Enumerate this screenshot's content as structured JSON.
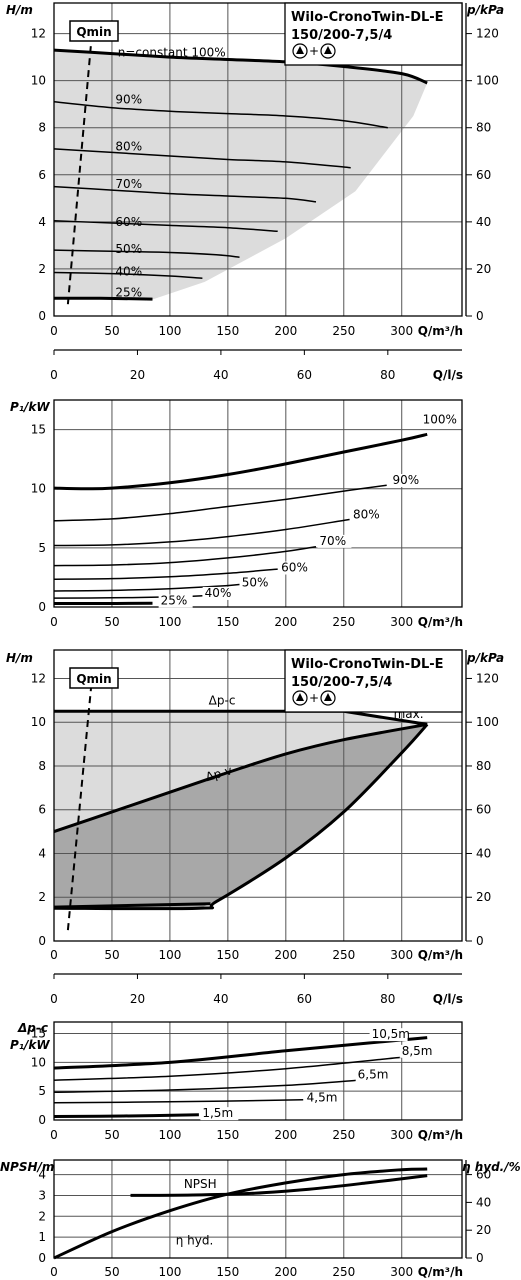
{
  "pump": {
    "title_line1": "Wilo-CronoTwin-DL-E",
    "title_line2": "150/200-7,5/4",
    "mode_plus": "+"
  },
  "colors": {
    "envelope": "#dcdcdc",
    "dpv_area": "#a8a8a8",
    "grid": "#555555",
    "curve": "#000000"
  },
  "chart_data": [
    {
      "id": "hq_speed",
      "type": "line",
      "xlabel": "Q/m³/h",
      "ylabel": "H/m",
      "y2label": "p/kPa",
      "x_secondary_label": "Q/l/s",
      "xlim": [
        0,
        352
      ],
      "ylim": [
        0,
        13.3
      ],
      "xticks": [
        0,
        50,
        100,
        150,
        200,
        250,
        300
      ],
      "yticks": [
        0,
        2,
        4,
        6,
        8,
        10,
        12
      ],
      "y2ticks": [
        0,
        20,
        40,
        60,
        80,
        100,
        120
      ],
      "x_secondary_ticks": [
        0,
        20,
        40,
        60,
        80
      ],
      "annotations": [
        "Qmin"
      ],
      "operating_range_envelope": {
        "upper": [
          [
            0,
            11.3
          ],
          [
            80,
            11.05
          ],
          [
            160,
            10.85
          ],
          [
            240,
            10.6
          ],
          [
            310,
            10.2
          ],
          [
            322,
            9.9
          ]
        ],
        "lower": [
          [
            0,
            0.75
          ],
          [
            50,
            0.7
          ],
          [
            85,
            0.7
          ],
          [
            130,
            1.45
          ],
          [
            200,
            3.3
          ],
          [
            260,
            5.3
          ],
          [
            310,
            8.5
          ],
          [
            322,
            9.9
          ]
        ]
      },
      "qmin_line": [
        [
          12,
          0.5
        ],
        [
          32,
          11.6
        ]
      ],
      "series": [
        {
          "name": "n=constant 100%",
          "label_at": [
            55,
            11.2
          ],
          "emphasis": true,
          "points": [
            [
              0,
              11.3
            ],
            [
              50,
              11.15
            ],
            [
              100,
              11.0
            ],
            [
              150,
              10.9
            ],
            [
              200,
              10.8
            ],
            [
              250,
              10.6
            ],
            [
              300,
              10.3
            ],
            [
              322,
              9.9
            ]
          ]
        },
        {
          "name": "90%",
          "label_at": [
            53,
            9.2
          ],
          "points": [
            [
              0,
              9.1
            ],
            [
              50,
              8.85
            ],
            [
              100,
              8.7
            ],
            [
              150,
              8.6
            ],
            [
              200,
              8.5
            ],
            [
              250,
              8.3
            ],
            [
              288,
              8.0
            ]
          ]
        },
        {
          "name": "80%",
          "label_at": [
            53,
            7.2
          ],
          "points": [
            [
              0,
              7.1
            ],
            [
              50,
              6.95
            ],
            [
              100,
              6.8
            ],
            [
              150,
              6.65
            ],
            [
              200,
              6.55
            ],
            [
              256,
              6.3
            ]
          ]
        },
        {
          "name": "70%",
          "label_at": [
            53,
            5.6
          ],
          "points": [
            [
              0,
              5.5
            ],
            [
              50,
              5.35
            ],
            [
              100,
              5.2
            ],
            [
              150,
              5.1
            ],
            [
              200,
              5.0
            ],
            [
              226,
              4.85
            ]
          ]
        },
        {
          "name": "60%",
          "label_at": [
            53,
            4.0
          ],
          "points": [
            [
              0,
              4.05
            ],
            [
              50,
              3.95
            ],
            [
              100,
              3.85
            ],
            [
              150,
              3.75
            ],
            [
              193,
              3.6
            ]
          ]
        },
        {
          "name": "50%",
          "label_at": [
            53,
            2.85
          ],
          "points": [
            [
              0,
              2.8
            ],
            [
              50,
              2.75
            ],
            [
              100,
              2.7
            ],
            [
              140,
              2.6
            ],
            [
              160,
              2.5
            ]
          ]
        },
        {
          "name": "40%",
          "label_at": [
            53,
            1.9
          ],
          "points": [
            [
              0,
              1.85
            ],
            [
              50,
              1.8
            ],
            [
              100,
              1.7
            ],
            [
              128,
              1.6
            ]
          ]
        },
        {
          "name": "25%",
          "label_at": [
            53,
            1.0
          ],
          "emphasis": true,
          "points": [
            [
              0,
              0.75
            ],
            [
              40,
              0.75
            ],
            [
              85,
              0.72
            ]
          ]
        }
      ]
    },
    {
      "id": "p1_speed",
      "type": "line",
      "xlabel": "Q/m³/h",
      "ylabel": "P₁/kW",
      "xlim": [
        0,
        352
      ],
      "ylim": [
        0,
        17.5
      ],
      "xticks": [
        0,
        50,
        100,
        150,
        200,
        250,
        300
      ],
      "yticks": [
        0,
        5,
        10,
        15
      ],
      "series": [
        {
          "name": "100%",
          "label_at": [
            318,
            15.5
          ],
          "emphasis": true,
          "points": [
            [
              0,
              10.05
            ],
            [
              25,
              10.0
            ],
            [
              50,
              10.05
            ],
            [
              100,
              10.5
            ],
            [
              150,
              11.2
            ],
            [
              200,
              12.1
            ],
            [
              250,
              13.1
            ],
            [
              300,
              14.1
            ],
            [
              322,
              14.6
            ]
          ]
        },
        {
          "name": "90%",
          "label_at": [
            292,
            10.4
          ],
          "points": [
            [
              0,
              7.3
            ],
            [
              50,
              7.45
            ],
            [
              100,
              7.9
            ],
            [
              150,
              8.5
            ],
            [
              200,
              9.1
            ],
            [
              250,
              9.8
            ],
            [
              287,
              10.3
            ]
          ]
        },
        {
          "name": "80%",
          "label_at": [
            258,
            7.5
          ],
          "points": [
            [
              0,
              5.2
            ],
            [
              50,
              5.25
            ],
            [
              100,
              5.5
            ],
            [
              150,
              5.95
            ],
            [
              200,
              6.55
            ],
            [
              255,
              7.4
            ]
          ]
        },
        {
          "name": "70%",
          "label_at": [
            229,
            5.25
          ],
          "points": [
            [
              0,
              3.5
            ],
            [
              50,
              3.55
            ],
            [
              100,
              3.75
            ],
            [
              150,
              4.15
            ],
            [
              200,
              4.7
            ],
            [
              226,
              5.1
            ]
          ]
        },
        {
          "name": "60%",
          "label_at": [
            196,
            3.0
          ],
          "points": [
            [
              0,
              2.35
            ],
            [
              50,
              2.4
            ],
            [
              100,
              2.55
            ],
            [
              150,
              2.85
            ],
            [
              193,
              3.2
            ]
          ]
        },
        {
          "name": "50%",
          "label_at": [
            162,
            1.75
          ],
          "points": [
            [
              0,
              1.35
            ],
            [
              50,
              1.4
            ],
            [
              100,
              1.55
            ],
            [
              140,
              1.75
            ],
            [
              160,
              1.9
            ]
          ]
        },
        {
          "name": "40%",
          "label_at": [
            130,
            0.85
          ],
          "points": [
            [
              0,
              0.75
            ],
            [
              50,
              0.78
            ],
            [
              100,
              0.85
            ],
            [
              128,
              0.95
            ]
          ]
        },
        {
          "name": "25%",
          "label_at": [
            92,
            0.2
          ],
          "emphasis": true,
          "points": [
            [
              0,
              0.3
            ],
            [
              50,
              0.3
            ],
            [
              85,
              0.32
            ]
          ]
        }
      ]
    },
    {
      "id": "hq_control",
      "type": "area",
      "xlabel": "Q/m³/h",
      "ylabel": "H/m",
      "y2label": "p/kPa",
      "x_secondary_label": "Q/l/s",
      "xlim": [
        0,
        352
      ],
      "ylim": [
        0,
        13.3
      ],
      "xticks": [
        0,
        50,
        100,
        150,
        200,
        250,
        300
      ],
      "yticks": [
        0,
        2,
        4,
        6,
        8,
        10,
        12
      ],
      "y2ticks": [
        0,
        20,
        40,
        60,
        80,
        100,
        120
      ],
      "x_secondary_ticks": [
        0,
        20,
        40,
        60,
        80
      ],
      "annotations": [
        "Qmin",
        "Δp-c",
        "Δp-v",
        "max."
      ],
      "dpc_line": [
        [
          0,
          10.5
        ],
        [
          250,
          10.5
        ],
        [
          322,
          9.9
        ]
      ],
      "dpv_line": [
        [
          0,
          5.0
        ],
        [
          50,
          5.9
        ],
        [
          100,
          6.8
        ],
        [
          150,
          7.7
        ],
        [
          200,
          8.55
        ],
        [
          250,
          9.2
        ],
        [
          322,
          9.9
        ]
      ],
      "lower_boundary": [
        [
          0,
          1.5
        ],
        [
          125,
          1.5
        ],
        [
          140,
          1.8
        ],
        [
          200,
          3.8
        ],
        [
          250,
          5.9
        ],
        [
          300,
          8.6
        ],
        [
          322,
          9.9
        ]
      ],
      "min_line": [
        [
          0,
          1.55
        ],
        [
          135,
          1.7
        ]
      ],
      "qmin_line": [
        [
          12,
          0.5
        ],
        [
          32,
          11.6
        ]
      ]
    },
    {
      "id": "p1_control",
      "type": "line",
      "xlabel": "Q/m³/h",
      "ylabel": "P₁/kW",
      "ylabel_top": "Δp-c",
      "xlim": [
        0,
        352
      ],
      "ylim": [
        0,
        17
      ],
      "xticks": [
        0,
        50,
        100,
        150,
        200,
        250,
        300
      ],
      "yticks": [
        0,
        5,
        10,
        15
      ],
      "series": [
        {
          "name": "10,5m",
          "label_at": [
            274,
            14.2
          ],
          "emphasis": true,
          "points": [
            [
              0,
              9.0
            ],
            [
              100,
              10.0
            ],
            [
              200,
              12.0
            ],
            [
              322,
              14.3
            ]
          ]
        },
        {
          "name": "8,5m",
          "label_at": [
            300,
            11.3
          ],
          "points": [
            [
              0,
              6.9
            ],
            [
              100,
              7.6
            ],
            [
              200,
              8.9
            ],
            [
              300,
              10.9
            ]
          ]
        },
        {
          "name": "6,5m",
          "label_at": [
            262,
            7.2
          ],
          "points": [
            [
              0,
              4.8
            ],
            [
              100,
              5.2
            ],
            [
              200,
              6.0
            ],
            [
              262,
              6.9
            ]
          ]
        },
        {
          "name": "4,5m",
          "label_at": [
            218,
            3.2
          ],
          "points": [
            [
              0,
              3.0
            ],
            [
              100,
              3.15
            ],
            [
              215,
              3.5
            ]
          ]
        },
        {
          "name": "1,5m",
          "label_at": [
            128,
            0.5
          ],
          "emphasis": true,
          "points": [
            [
              0,
              0.6
            ],
            [
              60,
              0.7
            ],
            [
              125,
              0.9
            ]
          ]
        }
      ]
    },
    {
      "id": "npsh_eff",
      "type": "line",
      "xlabel": "Q/m³/h",
      "ylabel": "NPSH/m",
      "y2label": "η hyd./%",
      "xlim": [
        0,
        352
      ],
      "ylim": [
        0,
        4.7
      ],
      "y2lim": [
        0,
        70.5
      ],
      "xticks": [
        0,
        50,
        100,
        150,
        200,
        250,
        300
      ],
      "yticks": [
        0,
        1,
        2,
        3,
        4
      ],
      "y2ticks": [
        0,
        20,
        40,
        60
      ],
      "series": [
        {
          "name": "NPSH",
          "label_at": [
            112,
            3.35
          ],
          "axis": "left",
          "points": [
            [
              66,
              3.0
            ],
            [
              120,
              3.02
            ],
            [
              170,
              3.1
            ],
            [
              220,
              3.3
            ],
            [
              270,
              3.6
            ],
            [
              322,
              3.95
            ]
          ]
        },
        {
          "name": "η hyd.",
          "label_at": [
            105,
            0.65
          ],
          "axis": "right",
          "points": [
            [
              0,
              0
            ],
            [
              50,
              19
            ],
            [
              100,
              34
            ],
            [
              150,
              46
            ],
            [
              200,
              54
            ],
            [
              250,
              60
            ],
            [
              300,
              63.5
            ],
            [
              322,
              64
            ]
          ]
        }
      ]
    }
  ]
}
